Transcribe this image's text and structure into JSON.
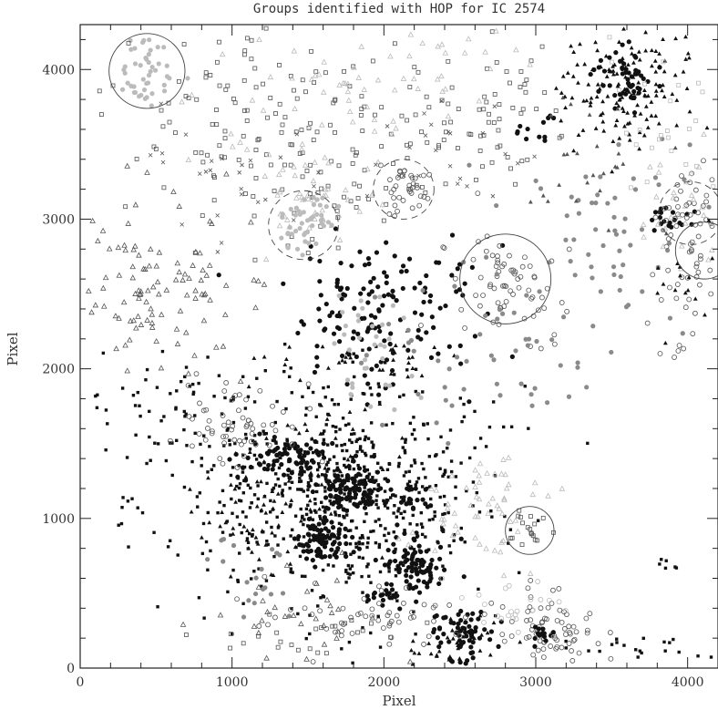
{
  "chart_data": {
    "type": "scatter",
    "title": "Groups identified with HOP for IC 2574",
    "xlabel": "Pixel",
    "ylabel": "Pixel",
    "xlim": [
      0,
      4200
    ],
    "ylim": [
      0,
      4300
    ],
    "x_ticks": [
      0,
      1000,
      2000,
      3000,
      4000
    ],
    "y_ticks": [
      0,
      1000,
      2000,
      3000,
      4000
    ],
    "x_tick_labels": [
      "0",
      "1000",
      "2000",
      "3000",
      "4000"
    ],
    "y_tick_labels": [
      "0",
      "1000",
      "2000",
      "3000",
      "4000"
    ],
    "grid": false,
    "legend": "none",
    "colors": {
      "black": "#111111",
      "dark_grey": "#555555",
      "grey": "#8a8a8a",
      "light_grey": "#bbbbbb"
    },
    "circles": [
      {
        "x": 440,
        "y": 3990,
        "r": 250,
        "style": "solid"
      },
      {
        "x": 1470,
        "y": 2960,
        "r": 230,
        "style": "dashed"
      },
      {
        "x": 2130,
        "y": 3200,
        "r": 200,
        "style": "dashed"
      },
      {
        "x": 2800,
        "y": 2600,
        "r": 300,
        "style": "solid"
      },
      {
        "x": 2960,
        "y": 920,
        "r": 160,
        "style": "solid"
      },
      {
        "x": 4020,
        "y": 3040,
        "r": 210,
        "style": "dashed"
      },
      {
        "x": 4110,
        "y": 2790,
        "r": 190,
        "style": "solid"
      }
    ],
    "groups": [
      {
        "cx": 1750,
        "cy": 1150,
        "sx": 480,
        "sy": 380,
        "n": 650,
        "marker": "square",
        "color": "black"
      },
      {
        "cx": 1600,
        "cy": 850,
        "sx": 90,
        "sy": 80,
        "n": 90,
        "marker": "filled-circle",
        "color": "black"
      },
      {
        "cx": 1780,
        "cy": 1180,
        "sx": 110,
        "sy": 90,
        "n": 110,
        "marker": "filled-circle",
        "color": "black"
      },
      {
        "cx": 2200,
        "cy": 680,
        "sx": 110,
        "sy": 90,
        "n": 90,
        "marker": "filled-circle",
        "color": "black"
      },
      {
        "cx": 1400,
        "cy": 1420,
        "sx": 160,
        "sy": 70,
        "n": 80,
        "marker": "filled-circle",
        "color": "black"
      },
      {
        "cx": 2020,
        "cy": 480,
        "sx": 50,
        "sy": 40,
        "n": 20,
        "marker": "filled-circle",
        "color": "black"
      },
      {
        "cx": 2200,
        "cy": 1100,
        "sx": 60,
        "sy": 60,
        "n": 20,
        "marker": "filled-circle",
        "color": "black"
      },
      {
        "cx": 550,
        "cy": 1770,
        "sx": 280,
        "sy": 180,
        "n": 60,
        "marker": "square",
        "color": "black"
      },
      {
        "cx": 320,
        "cy": 1060,
        "sx": 80,
        "sy": 80,
        "n": 8,
        "marker": "square",
        "color": "black"
      },
      {
        "cx": 1950,
        "cy": 2330,
        "sx": 330,
        "sy": 250,
        "n": 150,
        "marker": "filled-circle",
        "color": "black"
      },
      {
        "cx": 2520,
        "cy": 230,
        "sx": 110,
        "sy": 90,
        "n": 65,
        "marker": "filled-circle",
        "color": "black"
      },
      {
        "cx": 3600,
        "cy": 3900,
        "sx": 220,
        "sy": 220,
        "n": 150,
        "marker": "triangle-filled",
        "color": "black"
      },
      {
        "cx": 3590,
        "cy": 3950,
        "sx": 90,
        "sy": 90,
        "n": 50,
        "marker": "filled-circle",
        "color": "black"
      },
      {
        "cx": 3000,
        "cy": 3620,
        "sx": 80,
        "sy": 50,
        "n": 12,
        "marker": "filled-circle",
        "color": "black"
      },
      {
        "cx": 3880,
        "cy": 2990,
        "sx": 70,
        "sy": 50,
        "n": 20,
        "marker": "filled-circle",
        "color": "black"
      },
      {
        "cx": 1130,
        "cy": 1020,
        "sx": 220,
        "sy": 250,
        "n": 45,
        "marker": "triangle-filled",
        "color": "black"
      },
      {
        "cx": 1550,
        "cy": 1350,
        "sx": 380,
        "sy": 320,
        "n": 60,
        "marker": "triangle-filled",
        "color": "black"
      },
      {
        "cx": 2450,
        "cy": 150,
        "sx": 180,
        "sy": 110,
        "n": 35,
        "marker": "triangle-filled",
        "color": "black"
      },
      {
        "cx": 3650,
        "cy": 120,
        "sx": 170,
        "sy": 70,
        "n": 22,
        "marker": "square",
        "color": "black"
      },
      {
        "cx": 1900,
        "cy": 2070,
        "sx": 320,
        "sy": 80,
        "n": 30,
        "marker": "triangle-filled",
        "color": "black"
      },
      {
        "cx": 3850,
        "cy": 720,
        "sx": 60,
        "sy": 60,
        "n": 6,
        "marker": "square",
        "color": "black"
      },
      {
        "cx": 440,
        "cy": 3990,
        "sx": 110,
        "sy": 110,
        "n": 45,
        "marker": "filled-circle",
        "color": "light_grey"
      },
      {
        "cx": 1100,
        "cy": 3650,
        "sx": 450,
        "sy": 330,
        "n": 120,
        "marker": "square-open",
        "color": "dark_grey"
      },
      {
        "cx": 2700,
        "cy": 3700,
        "sx": 300,
        "sy": 270,
        "n": 70,
        "marker": "square-open",
        "color": "dark_grey"
      },
      {
        "cx": 1700,
        "cy": 3300,
        "sx": 280,
        "sy": 260,
        "n": 50,
        "marker": "square-open",
        "color": "dark_grey"
      },
      {
        "cx": 1650,
        "cy": 3750,
        "sx": 380,
        "sy": 300,
        "n": 55,
        "marker": "triangle-open",
        "color": "light_grey"
      },
      {
        "cx": 2300,
        "cy": 4020,
        "sx": 300,
        "sy": 180,
        "n": 30,
        "marker": "triangle-open",
        "color": "light_grey"
      },
      {
        "cx": 1470,
        "cy": 2960,
        "sx": 100,
        "sy": 100,
        "n": 45,
        "marker": "filled-circle",
        "color": "light_grey"
      },
      {
        "cx": 1470,
        "cy": 3150,
        "sx": 220,
        "sy": 130,
        "n": 40,
        "marker": "triangle-open",
        "color": "light_grey"
      },
      {
        "cx": 2130,
        "cy": 3200,
        "sx": 90,
        "sy": 90,
        "n": 35,
        "marker": "circle-open",
        "color": "dark_grey"
      },
      {
        "cx": 2800,
        "cy": 2600,
        "sx": 180,
        "sy": 180,
        "n": 70,
        "marker": "circle-open",
        "color": "dark_grey"
      },
      {
        "cx": 2800,
        "cy": 2150,
        "sx": 420,
        "sy": 320,
        "n": 60,
        "marker": "filled-circle",
        "color": "grey"
      },
      {
        "cx": 3500,
        "cy": 3000,
        "sx": 320,
        "sy": 330,
        "n": 55,
        "marker": "filled-circle",
        "color": "grey"
      },
      {
        "cx": 4050,
        "cy": 3000,
        "sx": 120,
        "sy": 220,
        "n": 60,
        "marker": "circle-open",
        "color": "dark_grey"
      },
      {
        "cx": 4000,
        "cy": 3100,
        "sx": 160,
        "sy": 200,
        "n": 35,
        "marker": "triangle-open",
        "color": "light_grey"
      },
      {
        "cx": 3800,
        "cy": 3700,
        "sx": 200,
        "sy": 300,
        "n": 25,
        "marker": "square-open",
        "color": "light_grey"
      },
      {
        "cx": 3350,
        "cy": 3350,
        "sx": 250,
        "sy": 200,
        "n": 25,
        "marker": "triangle-filled",
        "color": "dark_grey"
      },
      {
        "cx": 550,
        "cy": 2550,
        "sx": 330,
        "sy": 280,
        "n": 110,
        "marker": "triangle-open",
        "color": "dark_grey"
      },
      {
        "cx": 1050,
        "cy": 1650,
        "sx": 200,
        "sy": 130,
        "n": 60,
        "marker": "circle-open",
        "color": "dark_grey"
      },
      {
        "cx": 1930,
        "cy": 2150,
        "sx": 140,
        "sy": 200,
        "n": 35,
        "marker": "filled-circle",
        "color": "light_grey"
      },
      {
        "cx": 2600,
        "cy": 1050,
        "sx": 190,
        "sy": 200,
        "n": 60,
        "marker": "triangle-open",
        "color": "light_grey"
      },
      {
        "cx": 2960,
        "cy": 920,
        "sx": 70,
        "sy": 70,
        "n": 18,
        "marker": "square-open",
        "color": "dark_grey"
      },
      {
        "cx": 3080,
        "cy": 250,
        "sx": 160,
        "sy": 120,
        "n": 70,
        "marker": "circle-open",
        "color": "dark_grey"
      },
      {
        "cx": 3070,
        "cy": 230,
        "sx": 40,
        "sy": 30,
        "n": 14,
        "marker": "filled-circle",
        "color": "black"
      },
      {
        "cx": 2850,
        "cy": 400,
        "sx": 160,
        "sy": 100,
        "n": 25,
        "marker": "circle-open",
        "color": "light_grey"
      },
      {
        "cx": 2000,
        "cy": 300,
        "sx": 380,
        "sy": 110,
        "n": 60,
        "marker": "circle-open",
        "color": "dark_grey"
      },
      {
        "cx": 1450,
        "cy": 200,
        "sx": 300,
        "sy": 80,
        "n": 25,
        "marker": "square-open",
        "color": "dark_grey"
      },
      {
        "cx": 1150,
        "cy": 650,
        "sx": 170,
        "sy": 140,
        "n": 20,
        "marker": "filled-circle",
        "color": "grey"
      },
      {
        "cx": 1400,
        "cy": 350,
        "sx": 280,
        "sy": 170,
        "n": 30,
        "marker": "triangle-open",
        "color": "dark_grey"
      },
      {
        "cx": 4000,
        "cy": 2350,
        "sx": 130,
        "sy": 250,
        "n": 20,
        "marker": "circle-open",
        "color": "dark_grey"
      },
      {
        "cx": 4000,
        "cy": 2600,
        "sx": 120,
        "sy": 200,
        "n": 15,
        "marker": "triangle-filled",
        "color": "black"
      },
      {
        "cx": 900,
        "cy": 3300,
        "sx": 300,
        "sy": 250,
        "n": 25,
        "marker": "cross",
        "color": "dark_grey"
      },
      {
        "cx": 2300,
        "cy": 3400,
        "sx": 300,
        "sy": 200,
        "n": 25,
        "marker": "cross",
        "color": "dark_grey"
      }
    ]
  }
}
